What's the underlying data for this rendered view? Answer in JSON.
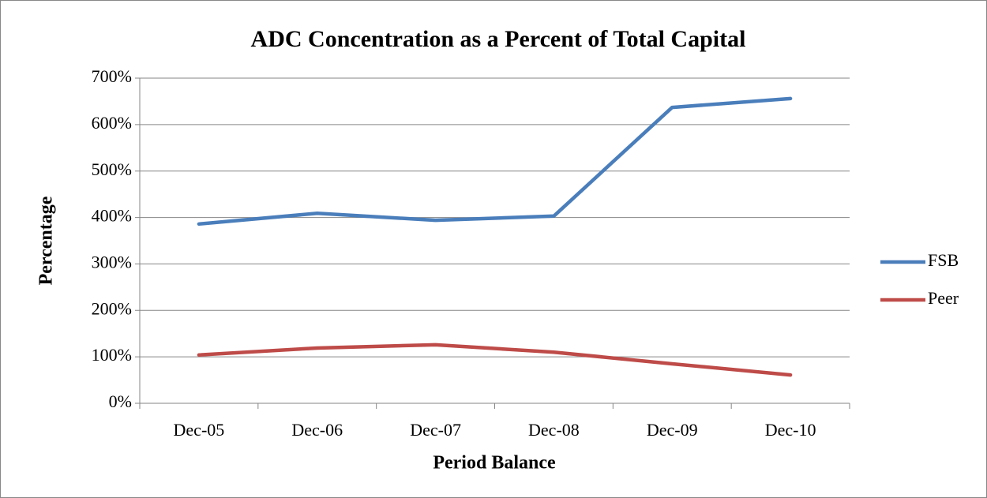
{
  "chart_data": {
    "type": "line",
    "title": "ADC Concentration as a Percent of Total Capital",
    "x_label": "Period Balance",
    "y_label": "Percentage",
    "categories": [
      "Dec-05",
      "Dec-06",
      "Dec-07",
      "Dec-08",
      "Dec-09",
      "Dec-10"
    ],
    "series": [
      {
        "name": "FSB",
        "color": "#4a7ebb",
        "values": [
          386,
          409,
          394,
          403,
          637,
          656
        ]
      },
      {
        "name": "Peer",
        "color": "#be4b48",
        "values": [
          104,
          119,
          126,
          110,
          85,
          61
        ]
      }
    ],
    "ylim": [
      0,
      700
    ],
    "yticks": [
      {
        "value": 0,
        "label": "0%"
      },
      {
        "value": 100,
        "label": "100%"
      },
      {
        "value": 200,
        "label": "200%"
      },
      {
        "value": 300,
        "label": "300%"
      },
      {
        "value": 400,
        "label": "400%"
      },
      {
        "value": 500,
        "label": "500%"
      },
      {
        "value": 600,
        "label": "600%"
      },
      {
        "value": 700,
        "label": "700%"
      }
    ],
    "grid": true,
    "legend": "right"
  }
}
